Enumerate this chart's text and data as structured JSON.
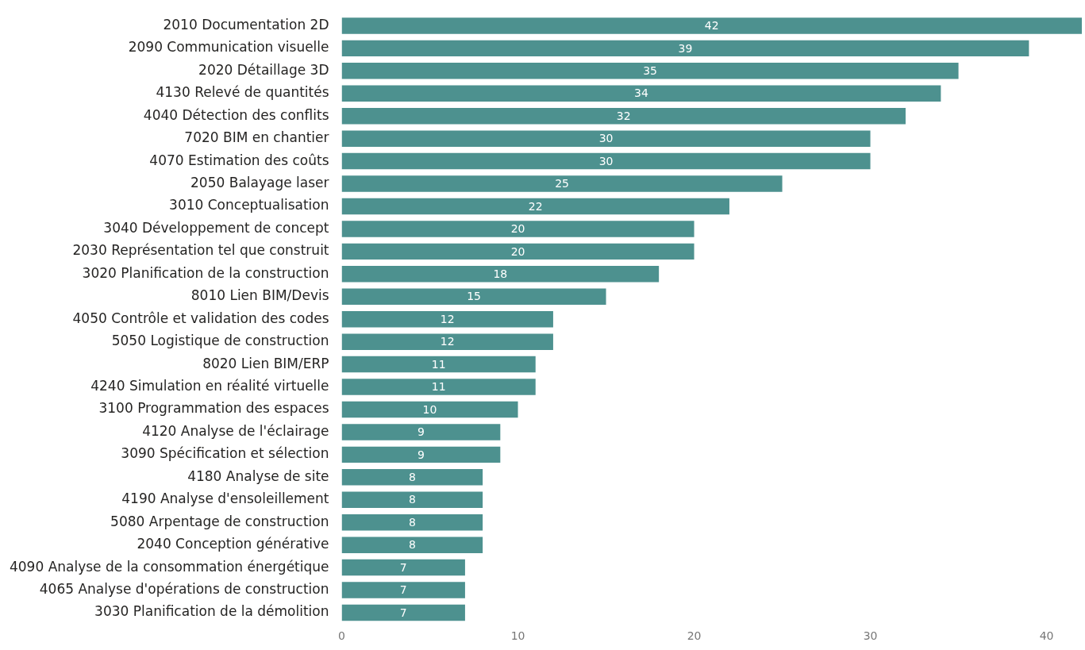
{
  "chart_data": {
    "type": "bar",
    "orientation": "horizontal",
    "categories": [
      "2010 Documentation 2D",
      "2090 Communication visuelle",
      "2020 Détaillage 3D",
      "4130 Relevé de quantités",
      "4040 Détection des conflits",
      "7020 BIM en chantier",
      "4070 Estimation des coûts",
      "2050 Balayage laser",
      "3010 Conceptualisation",
      "3040 Développement de concept",
      "2030 Représentation tel que construit",
      "3020 Planification de la construction",
      "8010 Lien BIM/Devis",
      "4050 Contrôle et validation des codes",
      "5050 Logistique de construction",
      "8020 Lien BIM/ERP",
      "4240 Simulation en réalité virtuelle",
      "3100 Programmation des espaces",
      "4120 Analyse de l'éclairage",
      "3090 Spécification et sélection",
      "4180 Analyse de site",
      "4190 Analyse d'ensoleillement",
      "5080 Arpentage de construction",
      "2040 Conception générative",
      "4090 Analyse de la consommation énergétique",
      "4065 Analyse d'opérations de construction",
      "3030 Planification de la démolition"
    ],
    "values": [
      42,
      39,
      35,
      34,
      32,
      30,
      30,
      25,
      22,
      20,
      20,
      18,
      15,
      12,
      12,
      11,
      11,
      10,
      9,
      9,
      8,
      8,
      8,
      8,
      7,
      7,
      7
    ],
    "color": "#4d918f",
    "xlim": [
      0,
      42
    ],
    "xticks": [
      0,
      10,
      20,
      30,
      40
    ],
    "grid": false,
    "legend": false,
    "data_labels": true
  }
}
